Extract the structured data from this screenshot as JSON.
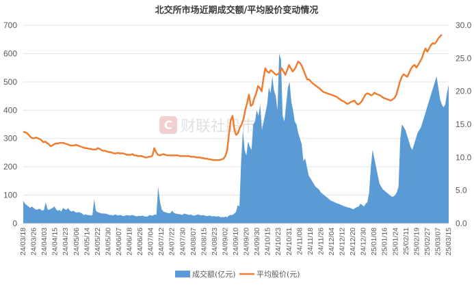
{
  "chart_data": {
    "type": "bar+line",
    "title": "北交所市场近期成交额/平均股价变动情况",
    "left_axis": {
      "ylim": [
        0,
        700
      ],
      "ticks": [
        0,
        100,
        200,
        300,
        400,
        500,
        600,
        700
      ]
    },
    "right_axis": {
      "ylim": [
        0,
        30
      ],
      "ticks": [
        "0.0",
        "5.0",
        "10.0",
        "15.0",
        "20.0",
        "25.0",
        "30.0"
      ]
    },
    "x_tick_labels": [
      "24/03/18",
      "24/03/26",
      "24/04/03",
      "24/04/15",
      "24/04/23",
      "24/05/06",
      "24/05/14",
      "24/05/22",
      "24/05/30",
      "24/06/07",
      "24/06/18",
      "24/06/26",
      "24/07/04",
      "24/07/12",
      "24/07/22",
      "24/07/30",
      "24/08/07",
      "24/08/15",
      "24/08/23",
      "24/09/02",
      "24/09/10",
      "24/09/20",
      "24/09/30",
      "24/10/15",
      "24/10/23",
      "24/10/31",
      "24/11/08",
      "24/11/18",
      "24/11/26",
      "24/12/04",
      "24/12/12",
      "24/12/20",
      "24/12/30",
      "25/01/08",
      "25/01/16",
      "25/01/24",
      "25/02/11",
      "25/02/19",
      "25/02/27",
      "25/03/07",
      "25/03/15"
    ],
    "grid": true,
    "legend_position": "bottom",
    "series": [
      {
        "name": "成交额(亿元)",
        "axis": "left",
        "kind": "area",
        "color": "#5b9bd5",
        "values": [
          80,
          70,
          65,
          60,
          55,
          60,
          55,
          50,
          48,
          52,
          50,
          45,
          48,
          75,
          50,
          48,
          52,
          55,
          60,
          50,
          45,
          48,
          42,
          55,
          50,
          48,
          55,
          45,
          42,
          45,
          40,
          38,
          40,
          38,
          35,
          30,
          32,
          30,
          30,
          28,
          30,
          85,
          45,
          40,
          38,
          36,
          35,
          35,
          34,
          32,
          30,
          30,
          28,
          32,
          30,
          28,
          30,
          28,
          26,
          28,
          30,
          28,
          28,
          30,
          28,
          26,
          25,
          27,
          26,
          28,
          25,
          24,
          25,
          30,
          28,
          28,
          32,
          30,
          130,
          80,
          50,
          42,
          40,
          38,
          36,
          36,
          45,
          38,
          35,
          34,
          33,
          32,
          30,
          35,
          33,
          32,
          30,
          32,
          28,
          28,
          30,
          32,
          30,
          28,
          30,
          28,
          26,
          27,
          28,
          25,
          26,
          25,
          24,
          26,
          22,
          23,
          22,
          24,
          22,
          28,
          30,
          30,
          35,
          40,
          65,
          60,
          220,
          330,
          260,
          240,
          290,
          270,
          260,
          350,
          360,
          400,
          380,
          420,
          330,
          360,
          390,
          420,
          480,
          460,
          520,
          470,
          450,
          400,
          600,
          580,
          380,
          360,
          420,
          480,
          500,
          430,
          400,
          360,
          350,
          320,
          300,
          280,
          220,
          230,
          200,
          170,
          160,
          150,
          140,
          130,
          125,
          120,
          110,
          105,
          100,
          95,
          90,
          85,
          80,
          78,
          75,
          72,
          70,
          68,
          65,
          62,
          60,
          58,
          56,
          55,
          52,
          50,
          55,
          58,
          60,
          70,
          65,
          60,
          70,
          75,
          110,
          200,
          260,
          230,
          200,
          170,
          140,
          130,
          120,
          115,
          110,
          105,
          100,
          95,
          95,
          100,
          110,
          130,
          300,
          350,
          340,
          330,
          310,
          290,
          270,
          260,
          280,
          300,
          320,
          330,
          340,
          360,
          380,
          400,
          420,
          440,
          460,
          480,
          500,
          520,
          480,
          440,
          420,
          410,
          420,
          460,
          490
        ]
      },
      {
        "name": "平均股价(元)",
        "axis": "right",
        "kind": "line",
        "color": "#ed7d31",
        "values": [
          13.9,
          13.8,
          13.7,
          13.4,
          13.1,
          12.9,
          12.9,
          13.0,
          12.9,
          12.8,
          12.6,
          12.3,
          12.4,
          12.2,
          12.0,
          11.7,
          11.8,
          12.0,
          12.1,
          12.1,
          12.2,
          12.2,
          12.2,
          12.1,
          12.0,
          11.9,
          11.8,
          11.8,
          11.8,
          11.9,
          11.8,
          11.7,
          11.6,
          11.5,
          11.4,
          11.4,
          11.3,
          11.3,
          11.2,
          11.2,
          11.2,
          11.4,
          11.3,
          11.1,
          11.0,
          11.0,
          10.9,
          10.8,
          10.8,
          10.7,
          10.6,
          10.6,
          10.7,
          10.6,
          10.6,
          10.6,
          10.5,
          10.4,
          10.4,
          10.4,
          10.5,
          10.3,
          10.3,
          10.2,
          10.2,
          10.2,
          10.1,
          10.0,
          10.0,
          10.1,
          10.1,
          10.3,
          11.4,
          10.8,
          10.4,
          10.3,
          10.4,
          10.5,
          10.4,
          10.3,
          10.3,
          10.3,
          10.3,
          10.3,
          10.3,
          10.3,
          10.2,
          10.2,
          10.2,
          10.2,
          10.2,
          10.2,
          10.1,
          10.1,
          10.1,
          10.0,
          10.0,
          10.0,
          9.9,
          9.9,
          9.8,
          9.8,
          9.7,
          9.7,
          9.6,
          9.6,
          9.6,
          9.6,
          9.6,
          9.7,
          9.8,
          10.2,
          11.0,
          13.5,
          15.6,
          16.3,
          14.2,
          13.4,
          13.7,
          14.5,
          15.0,
          15.8,
          17.2,
          18.2,
          19.5,
          17.8,
          18.0,
          19.0,
          19.7,
          20.8,
          20.5,
          20.0,
          22.0,
          23.5,
          23.0,
          22.8,
          23.2,
          23.0,
          22.7,
          22.5,
          22.6,
          22.9,
          23.5,
          23.0,
          22.5,
          23.2,
          24.0,
          23.5,
          23.0,
          23.3,
          23.8,
          24.5,
          24.3,
          23.9,
          23.2,
          22.5,
          21.8,
          21.8,
          21.5,
          21.2,
          21.0,
          20.8,
          20.6,
          20.4,
          20.1,
          19.9,
          19.8,
          19.7,
          19.6,
          19.5,
          19.4,
          19.3,
          19.2,
          19.0,
          18.8,
          18.6,
          18.5,
          18.3,
          18.1,
          18.2,
          18.4,
          18.5,
          18.6,
          18.2,
          18.0,
          18.2,
          18.5,
          19.0,
          19.5,
          19.7,
          19.6,
          19.4,
          19.5,
          19.8,
          19.6,
          19.5,
          19.4,
          19.2,
          19.0,
          18.9,
          18.8,
          18.7,
          18.6,
          18.8,
          19.0,
          19.5,
          20.5,
          21.5,
          22.2,
          22.6,
          22.4,
          22.2,
          22.8,
          23.4,
          23.8,
          24.0,
          23.6,
          24.0,
          24.5,
          25.0,
          25.8,
          26.5,
          26.0,
          26.5,
          27.0,
          27.3,
          27.2,
          27.5,
          28.0,
          28.3,
          28.6
        ]
      }
    ]
  },
  "watermark": "财联社股市频道"
}
